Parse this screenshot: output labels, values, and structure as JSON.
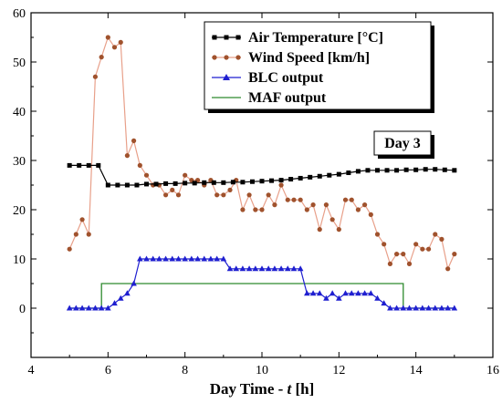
{
  "chart_data": {
    "type": "line",
    "xlabel_prefix": "Day Time - ",
    "xlabel_var": "t",
    "xlabel_unit": " [h]",
    "ylabel": "",
    "xlim": [
      4,
      16
    ],
    "ylim": [
      -10,
      60
    ],
    "x_ticks": [
      4,
      6,
      8,
      10,
      12,
      14,
      16
    ],
    "y_ticks": [
      0,
      10,
      20,
      30,
      40,
      50,
      60
    ],
    "grid": false,
    "legend_position": "top-right",
    "annotation": "Day 3",
    "series": [
      {
        "name": "Air Temperature [°C]",
        "color": "#000000",
        "marker": "square",
        "x": [
          5,
          5.25,
          5.5,
          5.75,
          6,
          6.25,
          6.5,
          6.75,
          7,
          7.25,
          7.5,
          7.75,
          8,
          8.25,
          8.5,
          8.75,
          9,
          9.25,
          9.5,
          9.75,
          10,
          10.25,
          10.5,
          10.75,
          11,
          11.25,
          11.5,
          11.75,
          12,
          12.25,
          12.5,
          12.75,
          13,
          13.25,
          13.5,
          13.75,
          14,
          14.25,
          14.5,
          14.75,
          15
        ],
        "values": [
          29,
          29,
          29,
          29,
          25,
          25,
          25,
          25,
          25.2,
          25.2,
          25.3,
          25.3,
          25.4,
          25.4,
          25.5,
          25.5,
          25.5,
          25.6,
          25.6,
          25.7,
          25.8,
          25.9,
          26,
          26.2,
          26.4,
          26.6,
          26.8,
          27,
          27.2,
          27.5,
          27.8,
          28,
          28,
          28,
          28,
          28.1,
          28.1,
          28.2,
          28.2,
          28.1,
          28
        ]
      },
      {
        "name": "Wind Speed [km/h]",
        "color": "#a0522d",
        "line_color": "#e8a08a",
        "marker": "circle",
        "x": [
          5,
          5.17,
          5.33,
          5.5,
          5.67,
          5.83,
          6,
          6.17,
          6.33,
          6.5,
          6.67,
          6.83,
          7,
          7.17,
          7.33,
          7.5,
          7.67,
          7.83,
          8,
          8.17,
          8.33,
          8.5,
          8.67,
          8.83,
          9,
          9.17,
          9.33,
          9.5,
          9.67,
          9.83,
          10,
          10.17,
          10.33,
          10.5,
          10.67,
          10.83,
          11,
          11.17,
          11.33,
          11.5,
          11.67,
          11.83,
          12,
          12.17,
          12.33,
          12.5,
          12.67,
          12.83,
          13,
          13.17,
          13.33,
          13.5,
          13.67,
          13.83,
          14,
          14.17,
          14.33,
          14.5,
          14.67,
          14.83,
          15
        ],
        "values": [
          12,
          15,
          18,
          15,
          47,
          51,
          55,
          53,
          54,
          31,
          34,
          29,
          27,
          25,
          25,
          23,
          24,
          23,
          27,
          26,
          26,
          25,
          26,
          23,
          23,
          24,
          26,
          20,
          23,
          20,
          20,
          23,
          21,
          25,
          22,
          22,
          22,
          20,
          21,
          16,
          21,
          18,
          16,
          22,
          22,
          20,
          21,
          19,
          15,
          13,
          9,
          11,
          11,
          9,
          13,
          12,
          12,
          15,
          14,
          8,
          11
        ]
      },
      {
        "name": "BLC output",
        "color": "#1f1fd0",
        "marker": "triangle",
        "x": [
          5,
          5.17,
          5.33,
          5.5,
          5.67,
          5.83,
          6,
          6.17,
          6.33,
          6.5,
          6.67,
          6.83,
          7,
          7.17,
          7.33,
          7.5,
          7.67,
          7.83,
          8,
          8.17,
          8.33,
          8.5,
          8.67,
          8.83,
          9,
          9.17,
          9.33,
          9.5,
          9.67,
          9.83,
          10,
          10.17,
          10.33,
          10.5,
          10.67,
          10.83,
          11,
          11.17,
          11.33,
          11.5,
          11.67,
          11.83,
          12,
          12.17,
          12.33,
          12.5,
          12.67,
          12.83,
          13,
          13.17,
          13.33,
          13.5,
          13.67,
          13.83,
          14,
          14.17,
          14.33,
          14.5,
          14.67,
          14.83,
          15
        ],
        "values": [
          0,
          0,
          0,
          0,
          0,
          0,
          0,
          1,
          2,
          3,
          5,
          10,
          10,
          10,
          10,
          10,
          10,
          10,
          10,
          10,
          10,
          10,
          10,
          10,
          10,
          8,
          8,
          8,
          8,
          8,
          8,
          8,
          8,
          8,
          8,
          8,
          8,
          3,
          3,
          3,
          2,
          3,
          2,
          3,
          3,
          3,
          3,
          3,
          2,
          1,
          0,
          0,
          0,
          0,
          0,
          0,
          0,
          0,
          0,
          0,
          0
        ]
      },
      {
        "name": "MAF output",
        "color": "#2e8b2e",
        "marker": "none",
        "step": true,
        "x": [
          5,
          5.83,
          5.83,
          13.67,
          13.67,
          15
        ],
        "values": [
          0,
          0,
          5,
          5,
          0,
          0
        ]
      }
    ]
  }
}
